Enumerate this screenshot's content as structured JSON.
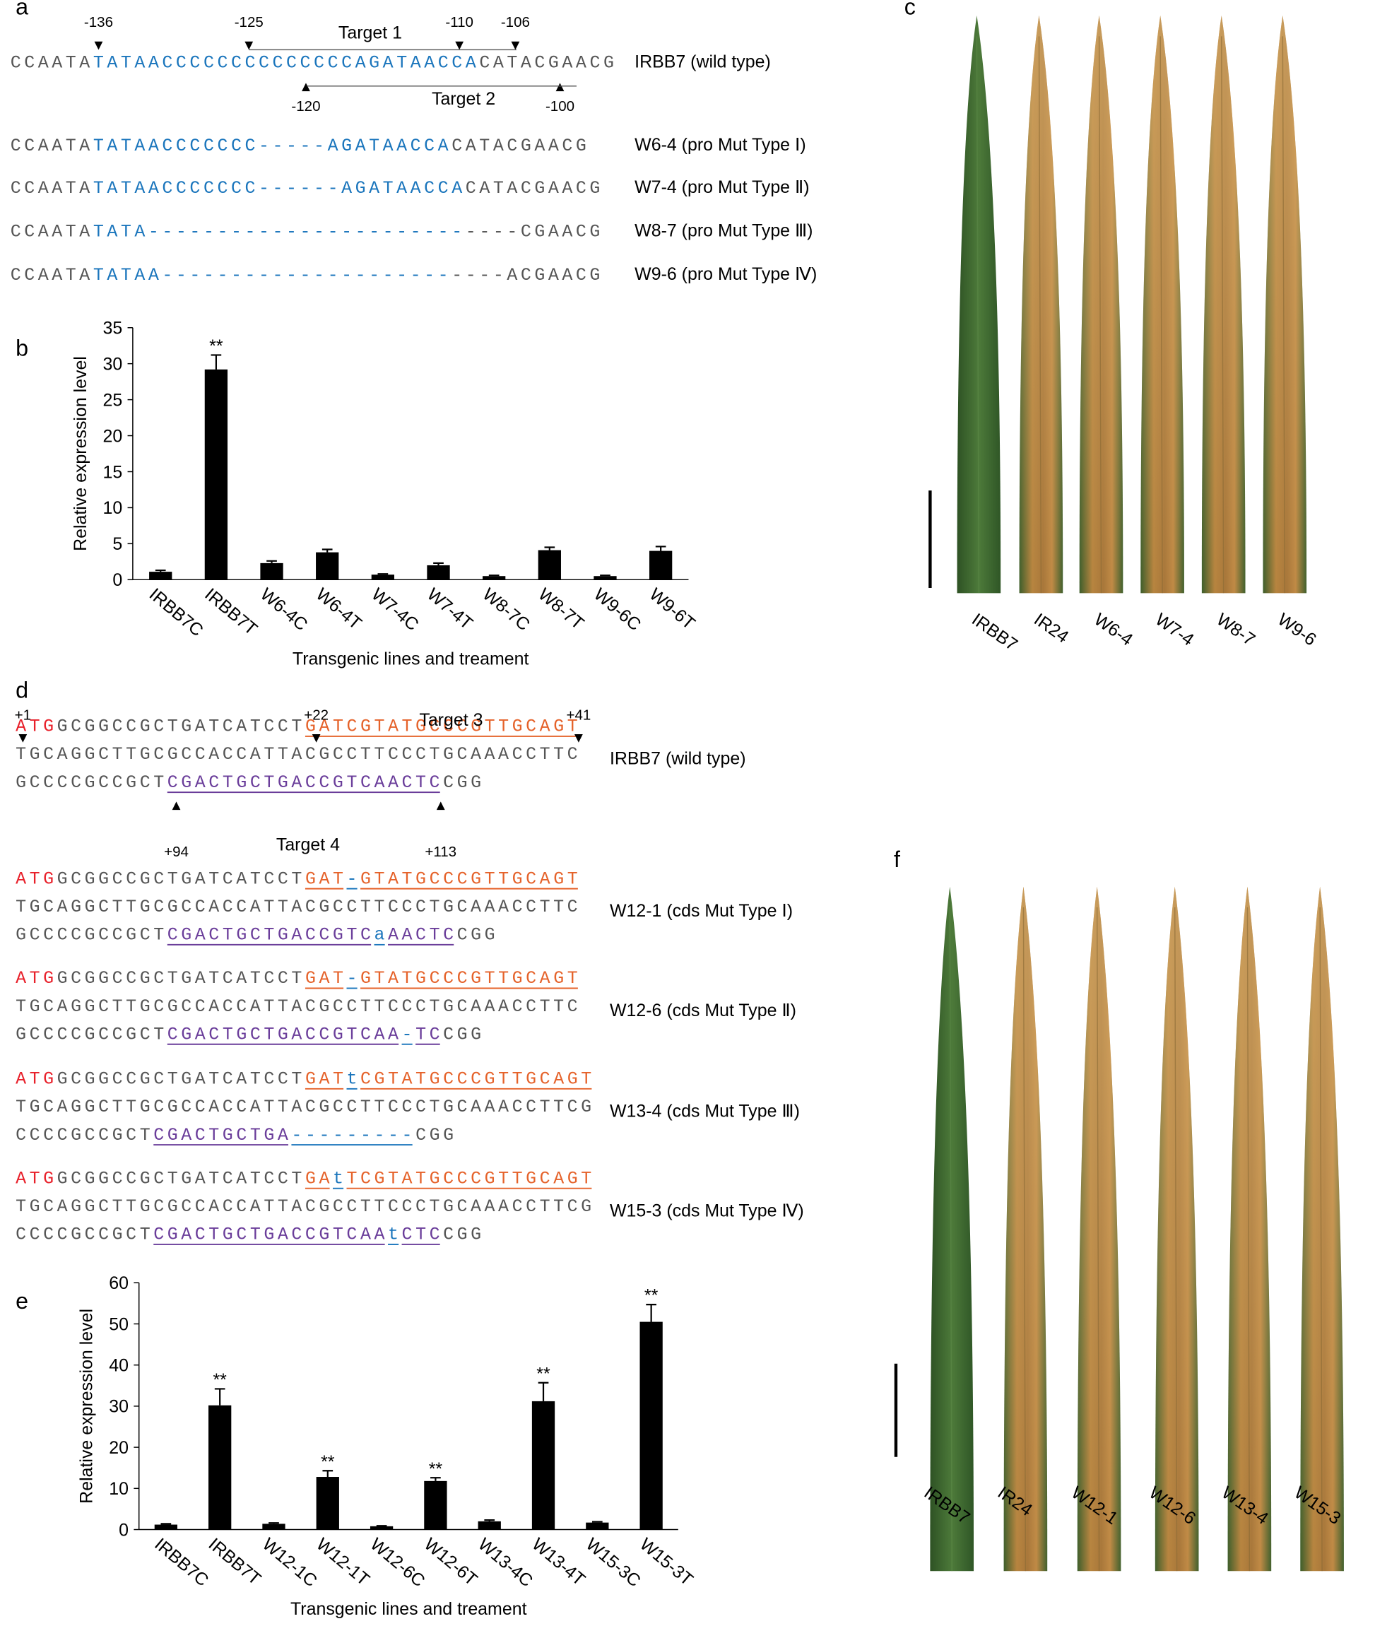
{
  "panel_labels": [
    "a",
    "b",
    "c",
    "d",
    "e",
    "f"
  ],
  "panel_a": {
    "positions": [
      "-136",
      "-125",
      "-110",
      "-106",
      "-120",
      "-100"
    ],
    "targets": [
      "Target 1",
      "Target 2"
    ],
    "rows": [
      {
        "label": "IRBB7 (wild type)",
        "lines": [
          [
            {
              "text": "CCAATA",
              "color": "#555555"
            },
            {
              "text": "TATAACCCCCCCCCCCC",
              "color": "#1a75bc"
            },
            {
              "text": "CCAGATAACCA",
              "color": "#1a75bc"
            },
            {
              "text": "CATACGAACG",
              "color": "#555555"
            }
          ]
        ]
      },
      {
        "label": "W6-4 (pro Mut Type Ⅰ)",
        "lines": [
          [
            {
              "text": "CCAATA",
              "color": "#555555"
            },
            {
              "text": "TATAACCCCCCC-----AGATAACCA",
              "color": "#1a75bc"
            },
            {
              "text": "CATACGAACG",
              "color": "#555555"
            }
          ]
        ]
      },
      {
        "label": "W7-4 (pro Mut Type Ⅱ)",
        "lines": [
          [
            {
              "text": "CCAATA",
              "color": "#555555"
            },
            {
              "text": "TATAACCCCCCC------AGATAACCA",
              "color": "#1a75bc"
            },
            {
              "text": "CATACGAACG",
              "color": "#555555"
            }
          ]
        ]
      },
      {
        "label": "W8-7 (pro Mut Type Ⅲ)",
        "lines": [
          [
            {
              "text": "CCAATA",
              "color": "#555555"
            },
            {
              "text": "TATA-----------------------",
              "color": "#1a75bc"
            },
            {
              "text": "----CGAACG",
              "color": "#555555"
            }
          ]
        ]
      },
      {
        "label": "W9-6 (pro Mut Type Ⅳ)",
        "lines": [
          [
            {
              "text": "CCAATA",
              "color": "#555555"
            },
            {
              "text": "TATAA---------------------",
              "color": "#1a75bc"
            },
            {
              "text": "----ACGAACG",
              "color": "#555555"
            }
          ]
        ]
      }
    ]
  },
  "panel_c": {
    "labels": [
      "IRBB7",
      "IR24",
      "W6-4",
      "W7-4",
      "W8-7",
      "W9-6"
    ]
  },
  "panel_d": {
    "positions": [
      "+1",
      "+22",
      "+41",
      "+94",
      "+113"
    ],
    "targets": [
      "Target 3",
      "Target 4"
    ],
    "rows": [
      {
        "label": "IRBB7 (wild type)",
        "lines": [
          [
            {
              "text": "ATG",
              "color": "#e8202a"
            },
            {
              "text": "GCGGCCGCTGATCATCCT",
              "color": "#555555"
            },
            {
              "text": "GATCGTATGCCCGTTGCAGT",
              "color": "#e5622a",
              "underline": true
            }
          ],
          [
            {
              "text": "TGCAGGCTTGCGCCACCATTACGCCTTCCCTGCAAACCTTC",
              "color": "#555555"
            }
          ],
          [
            {
              "text": "GCCCCGCCGCT",
              "color": "#555555"
            },
            {
              "text": "CGACTGCTGACCGTCAACTC",
              "color": "#6a3d9a",
              "underline": true
            },
            {
              "text": "CGG",
              "color": "#555555"
            }
          ]
        ]
      },
      {
        "label": "W12-1 (cds Mut Type Ⅰ)",
        "lines": [
          [
            {
              "text": "ATG",
              "color": "#e8202a"
            },
            {
              "text": "GCGGCCGCTGATCATCCT",
              "color": "#555555"
            },
            {
              "text": "GAT",
              "color": "#e5622a",
              "underline": true
            },
            {
              "text": "-",
              "color": "#1a75bc",
              "underline": true
            },
            {
              "text": "GTATGCCCGTTGCAGT",
              "color": "#e5622a",
              "underline": true
            }
          ],
          [
            {
              "text": "TGCAGGCTTGCGCCACCATTACGCCTTCCCTGCAAACCTTC",
              "color": "#555555"
            }
          ],
          [
            {
              "text": "GCCCCGCCGCT",
              "color": "#555555"
            },
            {
              "text": "CGACTGCTGACCGTC",
              "color": "#6a3d9a",
              "underline": true
            },
            {
              "text": "a",
              "color": "#1a75bc",
              "underline": true
            },
            {
              "text": "AACTC",
              "color": "#6a3d9a",
              "underline": true
            },
            {
              "text": "CGG",
              "color": "#555555"
            }
          ]
        ]
      },
      {
        "label": "W12-6 (cds Mut Type Ⅱ)",
        "lines": [
          [
            {
              "text": "ATG",
              "color": "#e8202a"
            },
            {
              "text": "GCGGCCGCTGATCATCCT",
              "color": "#555555"
            },
            {
              "text": "GAT",
              "color": "#e5622a",
              "underline": true
            },
            {
              "text": "-",
              "color": "#1a75bc",
              "underline": true
            },
            {
              "text": "GTATGCCCGTTGCAGT",
              "color": "#e5622a",
              "underline": true
            }
          ],
          [
            {
              "text": "TGCAGGCTTGCGCCACCATTACGCCTTCCCTGCAAACCTTC",
              "color": "#555555"
            }
          ],
          [
            {
              "text": "GCCCCGCCGCT",
              "color": "#555555"
            },
            {
              "text": "CGACTGCTGACCGTCAA",
              "color": "#6a3d9a",
              "underline": true
            },
            {
              "text": "-",
              "color": "#1a75bc",
              "underline": true
            },
            {
              "text": "TC",
              "color": "#6a3d9a",
              "underline": true
            },
            {
              "text": "CGG",
              "color": "#555555"
            }
          ]
        ]
      },
      {
        "label": "W13-4 (cds Mut Type Ⅲ)",
        "lines": [
          [
            {
              "text": "ATG",
              "color": "#e8202a"
            },
            {
              "text": "GCGGCCGCTGATCATCCT",
              "color": "#555555"
            },
            {
              "text": "GAT",
              "color": "#e5622a",
              "underline": true
            },
            {
              "text": "t",
              "color": "#1a75bc",
              "underline": true
            },
            {
              "text": "CGTATGCCCGTTGCAGT",
              "color": "#e5622a",
              "underline": true
            }
          ],
          [
            {
              "text": "TGCAGGCTTGCGCCACCATTACGCCTTCCCTGCAAACCTTCG",
              "color": "#555555"
            }
          ],
          [
            {
              "text": "CCCCGCCGCT",
              "color": "#555555"
            },
            {
              "text": "CGACTGCTGA",
              "color": "#6a3d9a",
              "underline": true
            },
            {
              "text": "---------",
              "color": "#1a75bc",
              "underline": true
            },
            {
              "text": "CGG",
              "color": "#555555"
            }
          ]
        ]
      },
      {
        "label": "W15-3 (cds Mut Type Ⅳ)",
        "lines": [
          [
            {
              "text": "ATG",
              "color": "#e8202a"
            },
            {
              "text": "GCGGCCGCTGATCATCCT",
              "color": "#555555"
            },
            {
              "text": "GA",
              "color": "#e5622a",
              "underline": true
            },
            {
              "text": "t",
              "color": "#1a75bc",
              "underline": true
            },
            {
              "text": "TCGTATGCCCGTTGCAGT",
              "color": "#e5622a",
              "underline": true
            }
          ],
          [
            {
              "text": "TGCAGGCTTGCGCCACCATTACGCCTTCCCTGCAAACCTTCG",
              "color": "#555555"
            }
          ],
          [
            {
              "text": "CCCCGCCGCT",
              "color": "#555555"
            },
            {
              "text": "CGACTGCTGACCGTCAA",
              "color": "#6a3d9a",
              "underline": true
            },
            {
              "text": "t",
              "color": "#1a75bc",
              "underline": true
            },
            {
              "text": "CTC",
              "color": "#6a3d9a",
              "underline": true
            },
            {
              "text": "CGG",
              "color": "#555555"
            }
          ]
        ]
      }
    ]
  },
  "panel_f": {
    "labels": [
      "IRBB7",
      "IR24",
      "W12-1",
      "W12-6",
      "W13-4",
      "W15-3"
    ]
  },
  "chart_data": [
    {
      "type": "bar",
      "ylabel": "Relative expression level",
      "xlabel": "Transgenic lines and treament",
      "color": "#000000",
      "categories": [
        "IRBB7C",
        "IRBB7T",
        "W6-4C",
        "W6-4T",
        "W7-4C",
        "W7-4T",
        "W8-7C",
        "W8-7T",
        "W9-6C",
        "W9-6T"
      ],
      "values": [
        1.1,
        29.2,
        2.3,
        3.8,
        0.7,
        2.0,
        0.5,
        4.1,
        0.5,
        4.0
      ],
      "errors": [
        0.2,
        2.0,
        0.3,
        0.4,
        0.1,
        0.3,
        0.1,
        0.4,
        0.1,
        0.6
      ],
      "significance": [
        null,
        "**",
        null,
        null,
        null,
        null,
        null,
        null,
        null,
        null
      ],
      "ylim": [
        0,
        35
      ],
      "yticks": [
        0,
        5,
        10,
        15,
        20,
        25,
        30,
        35
      ]
    },
    {
      "type": "bar",
      "ylabel": "Relative expression level",
      "xlabel": "Transgenic lines and treament",
      "color": "#000000",
      "categories": [
        "IRBB7C",
        "IRBB7T",
        "W12-1C",
        "W12-1T",
        "W12-6C",
        "W12-6T",
        "W13-4C",
        "W13-4T",
        "W15-3C",
        "W15-3T"
      ],
      "values": [
        1.2,
        30.2,
        1.4,
        12.8,
        0.8,
        11.8,
        2.0,
        31.2,
        1.7,
        50.5
      ],
      "errors": [
        0.2,
        4.0,
        0.2,
        1.5,
        0.1,
        0.8,
        0.3,
        4.5,
        0.2,
        4.2
      ],
      "significance": [
        null,
        "**",
        null,
        "**",
        null,
        "**",
        null,
        "**",
        null,
        "**"
      ],
      "ylim": [
        0,
        60
      ],
      "yticks": [
        0,
        10,
        20,
        30,
        40,
        50,
        60
      ]
    }
  ]
}
